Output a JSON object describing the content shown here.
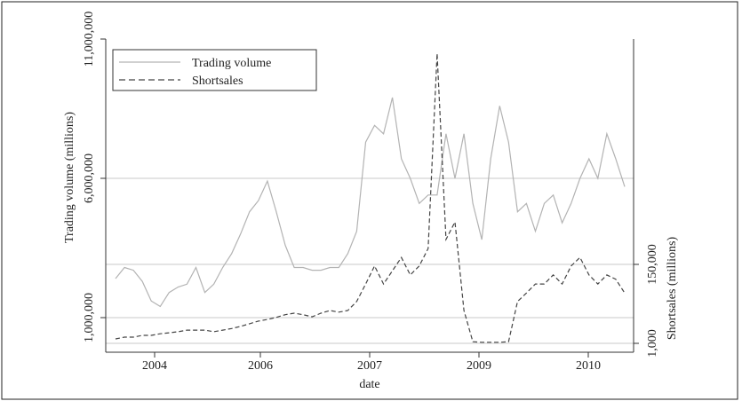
{
  "chart_data": {
    "type": "line",
    "xlabel": "date",
    "x_tick_labels": [
      "2004",
      "2006",
      "2007",
      "2009",
      "2010"
    ],
    "left_axis": {
      "label": "Trading volume (millions)",
      "ticks": [
        1000000,
        6000000,
        11000000
      ],
      "tick_labels": [
        "1,000,000",
        "6,000,000",
        "11,000,000"
      ]
    },
    "right_axis": {
      "label": "Shortsales (millions)",
      "ticks": [
        1000,
        150000
      ],
      "tick_labels": [
        "1,000",
        "150,000"
      ]
    },
    "grid": true,
    "legend_position": "top-left",
    "series": [
      {
        "name": "Trading volume",
        "axis": "left",
        "style": "solid",
        "color": "#b3b3b3",
        "values": [
          2400000,
          2800000,
          2700000,
          2300000,
          1600000,
          1400000,
          1900000,
          2100000,
          2200000,
          2800000,
          1900000,
          2200000,
          2800000,
          3300000,
          4000000,
          4800000,
          5200000,
          5900000,
          4800000,
          3600000,
          2800000,
          2800000,
          2700000,
          2700000,
          2800000,
          2800000,
          3300000,
          4100000,
          7300000,
          7900000,
          7600000,
          8900000,
          6700000,
          6000000,
          5100000,
          5400000,
          5400000,
          7600000,
          6000000,
          7600000,
          5100000,
          3800000,
          6700000,
          8600000,
          7300000,
          4800000,
          5100000,
          4100000,
          5100000,
          5400000,
          4400000,
          5100000,
          6000000,
          6700000,
          6000000,
          7600000,
          6700000,
          5700000
        ]
      },
      {
        "name": "Shortsales",
        "axis": "right",
        "style": "dashed",
        "color": "#444444",
        "values": [
          9400,
          12700,
          12700,
          16000,
          16000,
          19000,
          21000,
          23000,
          26000,
          26000,
          26000,
          23000,
          26000,
          29000,
          33000,
          38000,
          43000,
          46000,
          50000,
          55000,
          58000,
          55000,
          51000,
          58000,
          63000,
          60000,
          63000,
          80000,
          113000,
          147000,
          113000,
          138000,
          163000,
          130000,
          147000,
          180000,
          548000,
          197000,
          230000,
          63000,
          4000,
          3000,
          3000,
          3000,
          4000,
          80000,
          96000,
          113000,
          113000,
          130000,
          113000,
          147000,
          163000,
          130000,
          113000,
          130000,
          122000,
          96000
        ]
      }
    ]
  }
}
